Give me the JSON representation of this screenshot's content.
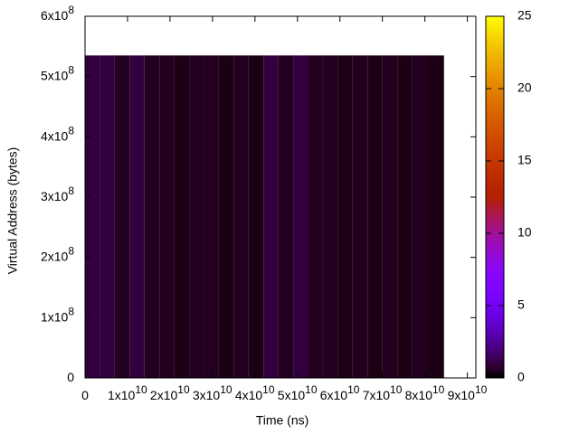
{
  "chart_data": {
    "type": "heatmap",
    "x_label": "Time (ns)",
    "y_label": "Virtual Address (bytes)",
    "xlim": [
      0,
      92000000000
    ],
    "ylim": [
      0,
      600000000
    ],
    "zlim": [
      0,
      25
    ],
    "xticks": [
      {
        "value": 0,
        "label": "0"
      },
      {
        "value": 10000000000,
        "label": "1x10",
        "exponent": "10"
      },
      {
        "value": 20000000000,
        "label": "2x10",
        "exponent": "10"
      },
      {
        "value": 30000000000,
        "label": "3x10",
        "exponent": "10"
      },
      {
        "value": 40000000000,
        "label": "4x10",
        "exponent": "10"
      },
      {
        "value": 50000000000,
        "label": "5x10",
        "exponent": "10"
      },
      {
        "value": 60000000000,
        "label": "6x10",
        "exponent": "10"
      },
      {
        "value": 70000000000,
        "label": "7x10",
        "exponent": "10"
      },
      {
        "value": 80000000000,
        "label": "8x10",
        "exponent": "10"
      },
      {
        "value": 90000000000,
        "label": "9x10",
        "exponent": "10"
      }
    ],
    "yticks": [
      {
        "value": 0,
        "label": "0"
      },
      {
        "value": 100000000,
        "label": "1x10",
        "exponent": "8"
      },
      {
        "value": 200000000,
        "label": "2x10",
        "exponent": "8"
      },
      {
        "value": 300000000,
        "label": "3x10",
        "exponent": "8"
      },
      {
        "value": 400000000,
        "label": "4x10",
        "exponent": "8"
      },
      {
        "value": 500000000,
        "label": "5x10",
        "exponent": "8"
      },
      {
        "value": 600000000,
        "label": "6x10",
        "exponent": "8"
      }
    ],
    "zticks": [
      0,
      5,
      10,
      15,
      20,
      25
    ],
    "xbins": [
      0,
      3500000000,
      7000000000,
      10500000000,
      14000000000,
      17500000000,
      21000000000,
      24500000000,
      28000000000,
      31500000000,
      35000000000,
      38500000000,
      42000000000,
      45500000000,
      49000000000,
      52500000000,
      56000000000,
      59500000000,
      63000000000,
      66500000000,
      70000000000,
      73500000000,
      77000000000,
      80500000000,
      84500000000
    ],
    "ybins": [
      0,
      535000000
    ],
    "values": [
      [
        1,
        1,
        0.5,
        1,
        0.5,
        0.5,
        0.3,
        0.5,
        0.5,
        0.3,
        0.5,
        0.3,
        1,
        0.5,
        1,
        0.5,
        0.5,
        0.3,
        0.5,
        0.3,
        0.5,
        0.3,
        0.5,
        0.3
      ]
    ]
  }
}
